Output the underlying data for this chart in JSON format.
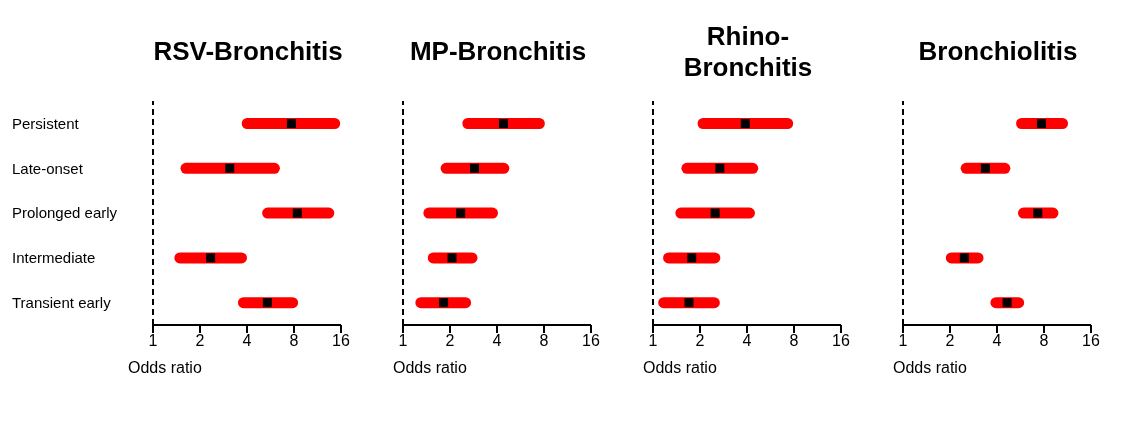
{
  "chart_data": [
    {
      "type": "bar",
      "title": "RSV-Bronchitis",
      "xlabel": "Odds ratio",
      "orientation": "horizontal",
      "log": "x",
      "categories": [
        "Persistent",
        "Late-onset",
        "Prolonged early",
        "Intermediate",
        "Transient early"
      ],
      "xlim": [
        1,
        16
      ],
      "xticks": [
        1,
        2,
        4,
        8,
        16
      ],
      "ref_lines": [
        {
          "axis": "x",
          "value": 1,
          "line_style": "dashed",
          "color": "#000000"
        }
      ],
      "series": [
        {
          "color": "#ff0000",
          "base": [
            3.7,
            1.5,
            5.0,
            1.37,
            3.5
          ],
          "values": [
            12.1,
            5.0,
            9.5,
            2.63,
            5.0
          ]
        },
        {
          "type": "scatter",
          "color": "#000000",
          "marker": "square",
          "values": [
            7.7,
            3.1,
            8.4,
            2.34,
            5.4
          ]
        }
      ]
    },
    {
      "type": "bar",
      "title": "MP-Bronchitis",
      "xlabel": "Odds ratio",
      "orientation": "horizontal",
      "log": "x",
      "tick_labels": "x",
      "categories": [
        null,
        null,
        null,
        null,
        null
      ],
      "xlim": [
        1,
        16
      ],
      "xticks": [
        1,
        2,
        4,
        8,
        16
      ],
      "ref_lines": [
        {
          "axis": "x",
          "value": 1,
          "line_style": "dashed",
          "color": "#000000"
        }
      ],
      "series": [
        {
          "color": "#ff0000",
          "base": [
            2.4,
            1.74,
            1.35,
            1.44,
            1.2
          ],
          "values": [
            5.7,
            3.06,
            2.71,
            1.56,
            1.53
          ]
        },
        {
          "type": "scatter",
          "color": "#000000",
          "marker": "square",
          "values": [
            4.4,
            2.87,
            2.34,
            2.06,
            1.82
          ]
        }
      ]
    },
    {
      "type": "bar",
      "title": "Rhino-\nBronchitis",
      "xlabel": "Odds ratio",
      "orientation": "horizontal",
      "log": "x",
      "tick_labels": "x",
      "categories": [
        null,
        null,
        null,
        null,
        null
      ],
      "xlim": [
        1,
        16
      ],
      "xticks": [
        1,
        2,
        4,
        8,
        16
      ],
      "ref_lines": [
        {
          "axis": "x",
          "value": 1,
          "line_style": "dashed",
          "color": "#000000"
        }
      ],
      "series": [
        {
          "color": "#ff0000",
          "base": [
            1.93,
            1.52,
            1.39,
            1.16,
            1.08
          ],
          "values": [
            5.97,
            3.2,
            3.11,
            1.54,
            1.6
          ]
        },
        {
          "type": "scatter",
          "color": "#000000",
          "marker": "square",
          "values": [
            3.9,
            2.68,
            2.5,
            1.77,
            1.7
          ]
        }
      ]
    },
    {
      "type": "bar",
      "title": "Bronchiolitis",
      "xlabel": "Odds ratio",
      "orientation": "horizontal",
      "log": "x",
      "tick_labels": "x",
      "categories": [
        null,
        null,
        null,
        null,
        null
      ],
      "xlim": [
        1,
        16
      ],
      "xticks": [
        1,
        2,
        4,
        8,
        16
      ],
      "ref_lines": [
        {
          "axis": "x",
          "value": 1,
          "line_style": "dashed",
          "color": "#000000"
        }
      ],
      "series": [
        {
          "color": "#ff0000",
          "base": [
            5.3,
            2.34,
            5.45,
            1.88,
            3.63
          ],
          "values": [
            6.1,
            2.53,
            4.45,
            1.4,
            2.34
          ]
        },
        {
          "type": "scatter",
          "color": "#000000",
          "marker": "square",
          "values": [
            7.7,
            3.37,
            7.3,
            2.47,
            4.64
          ]
        }
      ]
    }
  ]
}
